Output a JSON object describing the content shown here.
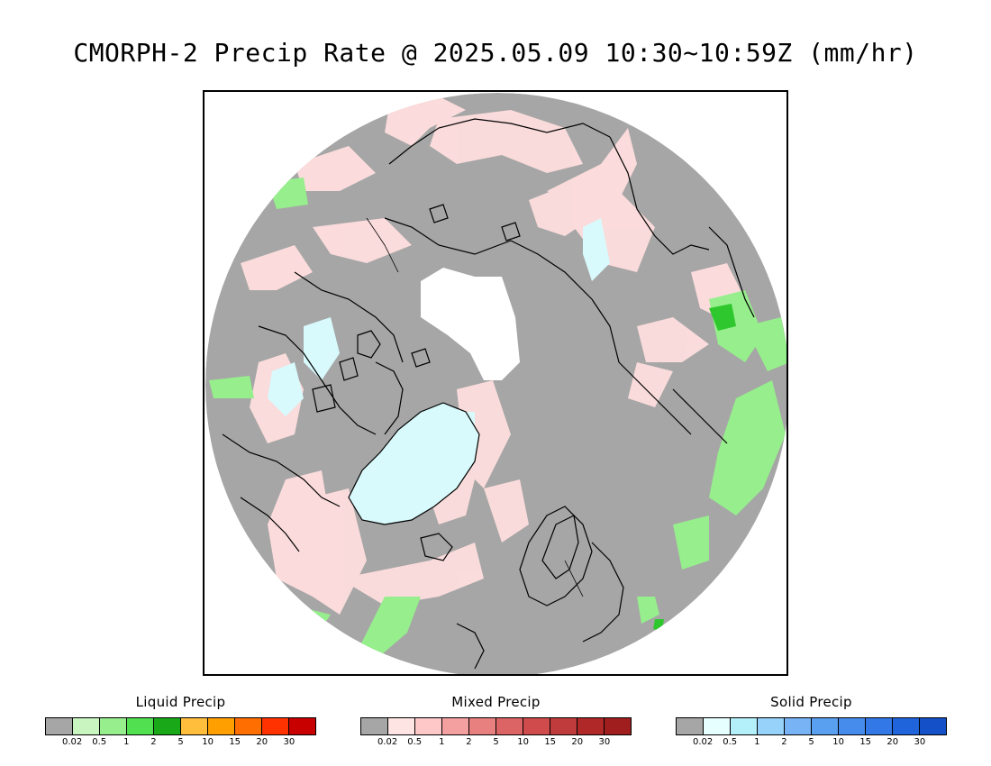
{
  "title": "CMORPH-2 Precip Rate @ 2025.05.09 10:30~10:59Z (mm/hr)",
  "map": {
    "background_color": "#a6a6a6",
    "no_data_color": "#ffffff",
    "coastline_color": "#000000"
  },
  "legends": [
    {
      "title": "Liquid Precip",
      "colors": [
        "#a6a6a6",
        "#c8f5c0",
        "#96ee8c",
        "#50e050",
        "#18a818",
        "#ffbe3c",
        "#ffa000",
        "#ff6e00",
        "#ff3200",
        "#c80000"
      ],
      "ticks": [
        "0.02",
        "0.5",
        "1",
        "2",
        "5",
        "10",
        "15",
        "20",
        "30"
      ]
    },
    {
      "title": "Mixed Precip",
      "colors": [
        "#a6a6a6",
        "#ffe4e4",
        "#ffc8c8",
        "#f4a0a0",
        "#e88080",
        "#dc6464",
        "#d04c4c",
        "#c03c3c",
        "#b02828",
        "#a01e1e"
      ],
      "ticks": [
        "0.02",
        "0.5",
        "1",
        "2",
        "5",
        "10",
        "15",
        "20",
        "30"
      ]
    },
    {
      "title": "Solid Precip",
      "colors": [
        "#a6a6a6",
        "#e6ffff",
        "#b4f0fa",
        "#96d2fa",
        "#78b4f5",
        "#5aa0f0",
        "#468cec",
        "#3278e6",
        "#2064dc",
        "#1450c8"
      ],
      "ticks": [
        "0.02",
        "0.5",
        "1",
        "2",
        "5",
        "10",
        "15",
        "20",
        "30"
      ]
    }
  ]
}
